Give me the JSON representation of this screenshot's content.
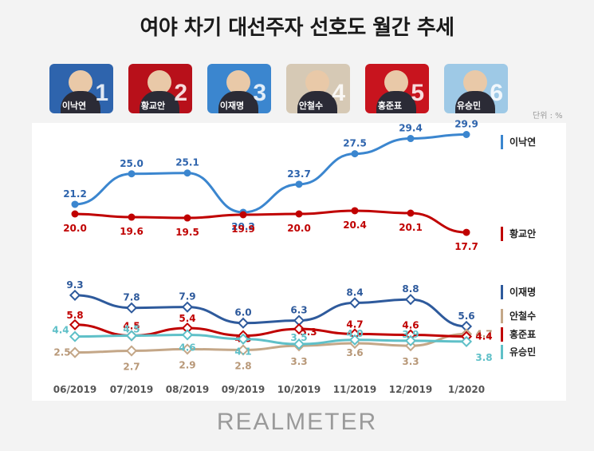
{
  "title": "여야 차기 대선주자 선호도 월간 추세",
  "unit_label": "단위 : %",
  "brand": "REALMETER",
  "candidates": [
    {
      "rank": "1",
      "name": "이낙연",
      "color": "#2e64ad"
    },
    {
      "rank": "2",
      "name": "황교안",
      "color": "#b8101a"
    },
    {
      "rank": "3",
      "name": "이재명",
      "color": "#3b86cf"
    },
    {
      "rank": "4",
      "name": "안철수",
      "color": "#d6c9b5"
    },
    {
      "rank": "5",
      "name": "홍준표",
      "color": "#c8141e"
    },
    {
      "rank": "6",
      "name": "유승민",
      "color": "#9ec9e6"
    }
  ],
  "chart_data": {
    "type": "line",
    "x": [
      "06/2019",
      "07/2019",
      "08/2019",
      "09/2019",
      "10/2019",
      "11/2019",
      "12/2019",
      "1/2020"
    ],
    "series": [
      {
        "name": "이낙연",
        "color": "#3b86cf",
        "label_color": "#2e64ad",
        "values": [
          21.2,
          25.0,
          25.1,
          20.2,
          23.7,
          27.5,
          29.4,
          29.9
        ]
      },
      {
        "name": "황교안",
        "color": "#c00000",
        "label_color": "#c00000",
        "values": [
          20.0,
          19.6,
          19.5,
          19.9,
          20.0,
          20.4,
          20.1,
          17.7
        ]
      },
      {
        "name": "이재명",
        "color": "#2e5a9c",
        "label_color": "#2e5a9c",
        "values": [
          9.3,
          7.8,
          7.9,
          6.0,
          6.3,
          8.4,
          8.8,
          5.6
        ]
      },
      {
        "name": "안철수",
        "color": "#c4a788",
        "label_color": "#b89878",
        "values": [
          2.5,
          2.7,
          2.9,
          2.8,
          3.3,
          3.6,
          3.3,
          4.7
        ]
      },
      {
        "name": "홍준표",
        "color": "#c00000",
        "label_color": "#c00000",
        "values": [
          5.8,
          4.5,
          5.4,
          4.5,
          5.3,
          4.7,
          4.6,
          4.4
        ]
      },
      {
        "name": "유승민",
        "color": "#5fc0c8",
        "label_color": "#5fc0c8",
        "values": [
          4.4,
          4.5,
          4.6,
          4.1,
          3.5,
          4.0,
          3.9,
          3.8
        ]
      }
    ],
    "grid": false,
    "legend": "right"
  }
}
